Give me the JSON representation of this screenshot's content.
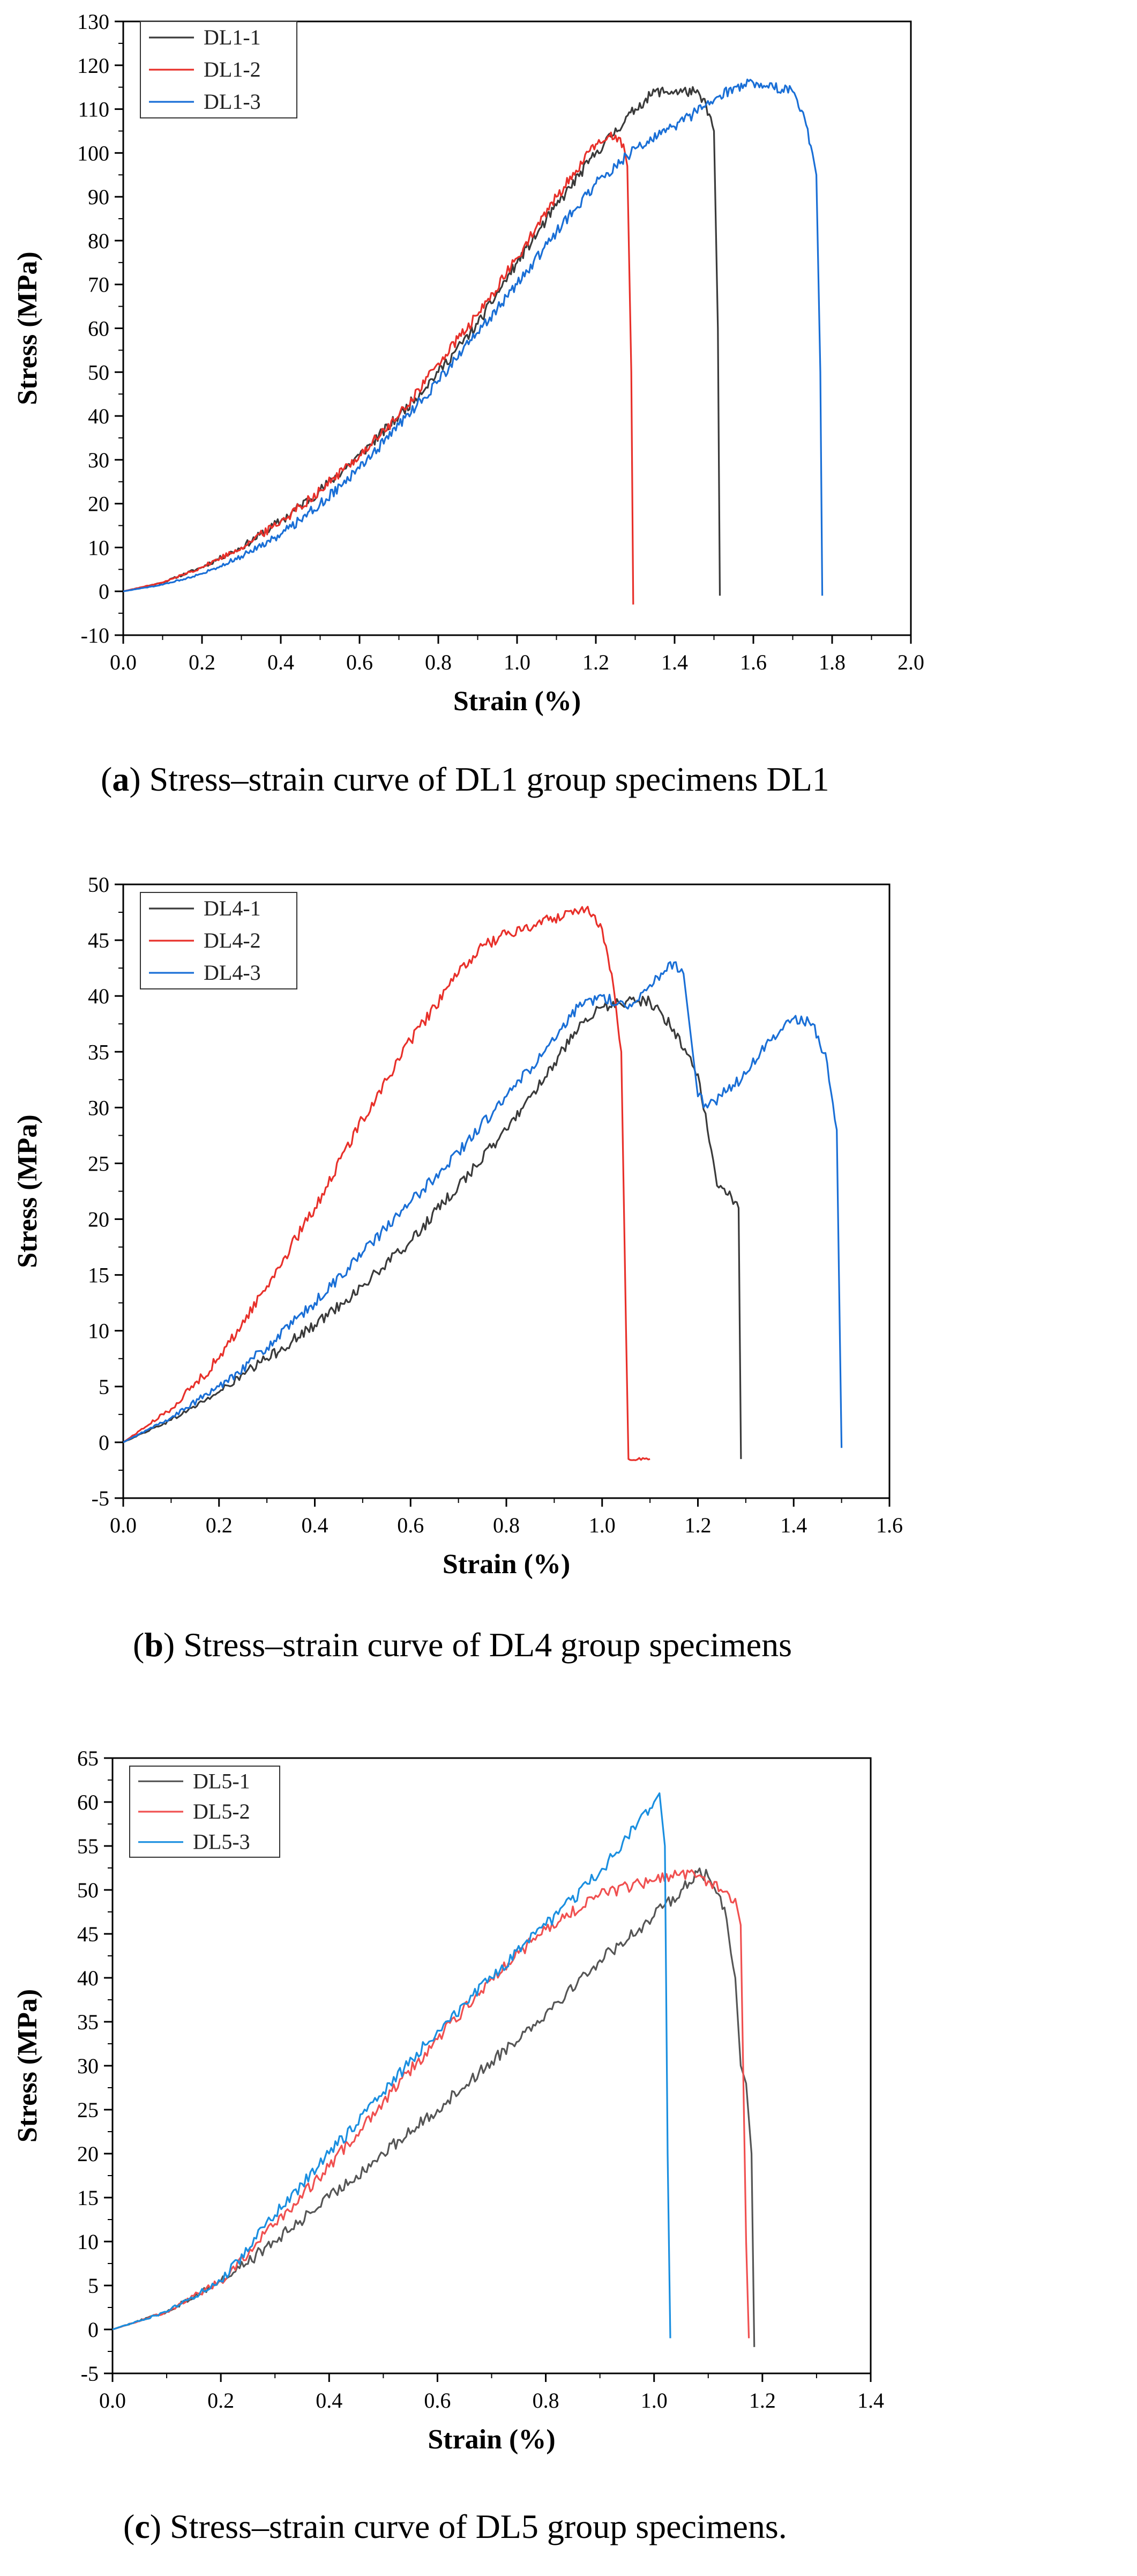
{
  "chart_data": [
    {
      "type": "line",
      "caption_letter": "a",
      "caption_text": " Stress–strain curve of DL1 group specimens DL1",
      "xlabel": "Strain (%)",
      "ylabel": "Stress (MPa)",
      "xlim": [
        0,
        2.0
      ],
      "ylim": [
        -10,
        130
      ],
      "xticks": [
        0,
        0.2,
        0.4,
        0.6,
        0.8,
        1.0,
        1.2,
        1.4,
        1.6,
        1.8,
        2.0
      ],
      "xtick_labels": [
        "0.0",
        "0.2",
        "0.4",
        "0.6",
        "0.8",
        "1.0",
        "1.2",
        "1.4",
        "1.6",
        "1.8",
        "2.0"
      ],
      "yticks": [
        -10,
        0,
        10,
        20,
        30,
        40,
        50,
        60,
        70,
        80,
        90,
        100,
        110,
        120,
        130
      ],
      "ytick_labels": [
        "-10",
        "0",
        "10",
        "20",
        "30",
        "40",
        "50",
        "60",
        "70",
        "80",
        "90",
        "100",
        "110",
        "120",
        "130"
      ],
      "legend_position": "top-left",
      "noise": 1.2,
      "series": [
        {
          "name": "DL1-1",
          "color": "#3a3a3a",
          "points": [
            [
              0,
              0
            ],
            [
              0.1,
              2
            ],
            [
              0.2,
              5.5
            ],
            [
              0.3,
              10
            ],
            [
              0.4,
              16
            ],
            [
              0.5,
              23
            ],
            [
              0.6,
              31
            ],
            [
              0.7,
              40
            ],
            [
              0.8,
              50
            ],
            [
              0.9,
              61
            ],
            [
              1.0,
              75
            ],
            [
              1.1,
              88
            ],
            [
              1.2,
              100
            ],
            [
              1.3,
              110
            ],
            [
              1.35,
              114
            ],
            [
              1.4,
              114
            ],
            [
              1.45,
              114
            ],
            [
              1.48,
              111
            ],
            [
              1.5,
              105
            ],
            [
              1.51,
              60
            ],
            [
              1.515,
              -1
            ]
          ]
        },
        {
          "name": "DL1-2",
          "color": "#e8302a",
          "points": [
            [
              0,
              0
            ],
            [
              0.1,
              2
            ],
            [
              0.2,
              5.5
            ],
            [
              0.3,
              10
            ],
            [
              0.4,
              16
            ],
            [
              0.5,
              23
            ],
            [
              0.6,
              31
            ],
            [
              0.7,
              40
            ],
            [
              0.8,
              52
            ],
            [
              0.9,
              63
            ],
            [
              1.0,
              76
            ],
            [
              1.1,
              90
            ],
            [
              1.15,
              96
            ],
            [
              1.2,
              102
            ],
            [
              1.25,
              104
            ],
            [
              1.27,
              102
            ],
            [
              1.28,
              97
            ],
            [
              1.29,
              50
            ],
            [
              1.295,
              -3
            ]
          ]
        },
        {
          "name": "DL1-3",
          "color": "#1a6fd6",
          "points": [
            [
              0,
              0
            ],
            [
              0.1,
              1.5
            ],
            [
              0.2,
              4
            ],
            [
              0.3,
              8
            ],
            [
              0.4,
              13
            ],
            [
              0.5,
              20
            ],
            [
              0.6,
              28
            ],
            [
              0.7,
              38
            ],
            [
              0.8,
              48
            ],
            [
              0.9,
              59
            ],
            [
              1.0,
              70
            ],
            [
              1.1,
              82
            ],
            [
              1.2,
              93
            ],
            [
              1.3,
              101
            ],
            [
              1.4,
              106
            ],
            [
              1.5,
              112
            ],
            [
              1.55,
              115
            ],
            [
              1.6,
              116
            ],
            [
              1.65,
              115
            ],
            [
              1.7,
              114
            ],
            [
              1.73,
              108
            ],
            [
              1.75,
              100
            ],
            [
              1.76,
              95
            ],
            [
              1.77,
              50
            ],
            [
              1.775,
              -1
            ]
          ]
        }
      ]
    },
    {
      "type": "line",
      "caption_letter": "b",
      "caption_text": " Stress–strain curve of DL4 group specimens",
      "xlabel": "Strain (%)",
      "ylabel": "Stress (MPa)",
      "xlim": [
        0,
        1.6
      ],
      "ylim": [
        -5,
        50
      ],
      "xticks": [
        0,
        0.2,
        0.4,
        0.6,
        0.8,
        1.0,
        1.2,
        1.4,
        1.6
      ],
      "xtick_labels": [
        "0.0",
        "0.2",
        "0.4",
        "0.6",
        "0.8",
        "1.0",
        "1.2",
        "1.4",
        "1.6"
      ],
      "yticks": [
        -5,
        0,
        5,
        10,
        15,
        20,
        25,
        30,
        35,
        40,
        45,
        50
      ],
      "ytick_labels": [
        "-5",
        "0",
        "5",
        "10",
        "15",
        "20",
        "25",
        "30",
        "35",
        "40",
        "45",
        "50"
      ],
      "legend_position": "top-left",
      "noise": 0.5,
      "series": [
        {
          "name": "DL4-1",
          "color": "#3a3a3a",
          "points": [
            [
              0,
              0
            ],
            [
              0.1,
              2
            ],
            [
              0.2,
              4.5
            ],
            [
              0.3,
              7.5
            ],
            [
              0.4,
              10.5
            ],
            [
              0.5,
              14
            ],
            [
              0.6,
              18
            ],
            [
              0.7,
              23
            ],
            [
              0.8,
              28
            ],
            [
              0.9,
              34
            ],
            [
              0.95,
              37
            ],
            [
              1.0,
              39
            ],
            [
              1.05,
              39.5
            ],
            [
              1.1,
              39.5
            ],
            [
              1.15,
              37
            ],
            [
              1.2,
              33
            ],
            [
              1.22,
              28
            ],
            [
              1.24,
              23
            ],
            [
              1.27,
              22
            ],
            [
              1.285,
              21
            ],
            [
              1.29,
              -1.5
            ]
          ]
        },
        {
          "name": "DL4-2",
          "color": "#e8302a",
          "points": [
            [
              0,
              0
            ],
            [
              0.1,
              3
            ],
            [
              0.2,
              7.5
            ],
            [
              0.3,
              14
            ],
            [
              0.4,
              21
            ],
            [
              0.5,
              29
            ],
            [
              0.6,
              36
            ],
            [
              0.7,
              42
            ],
            [
              0.75,
              44.5
            ],
            [
              0.8,
              45.5
            ],
            [
              0.9,
              47
            ],
            [
              0.97,
              48
            ],
            [
              1.0,
              46
            ],
            [
              1.02,
              42
            ],
            [
              1.04,
              35
            ],
            [
              1.05,
              10
            ],
            [
              1.055,
              -1.5
            ],
            [
              1.1,
              -1.5
            ]
          ]
        },
        {
          "name": "DL4-3",
          "color": "#1a6fd6",
          "points": [
            [
              0,
              0
            ],
            [
              0.1,
              2.2
            ],
            [
              0.2,
              5
            ],
            [
              0.3,
              8.5
            ],
            [
              0.4,
              12.5
            ],
            [
              0.5,
              17
            ],
            [
              0.6,
              21.5
            ],
            [
              0.7,
              26
            ],
            [
              0.8,
              31
            ],
            [
              0.9,
              36
            ],
            [
              0.95,
              39
            ],
            [
              1.0,
              40
            ],
            [
              1.05,
              39
            ],
            [
              1.1,
              41
            ],
            [
              1.15,
              43
            ],
            [
              1.17,
              42
            ],
            [
              1.2,
              31
            ],
            [
              1.22,
              30
            ],
            [
              1.3,
              33
            ],
            [
              1.35,
              36
            ],
            [
              1.4,
              38
            ],
            [
              1.44,
              37.5
            ],
            [
              1.47,
              34
            ],
            [
              1.49,
              28
            ],
            [
              1.5,
              -0.5
            ]
          ]
        }
      ]
    },
    {
      "type": "line",
      "caption_letter": "c",
      "caption_text": " Stress–strain curve of DL5 group specimens.",
      "xlabel": "Strain (%)",
      "ylabel": "Stress (MPa)",
      "xlim": [
        0,
        1.4
      ],
      "ylim": [
        -5,
        65
      ],
      "xticks": [
        0,
        0.2,
        0.4,
        0.6,
        0.8,
        1.0,
        1.2,
        1.4
      ],
      "xtick_labels": [
        "0.0",
        "0.2",
        "0.4",
        "0.6",
        "0.8",
        "1.0",
        "1.2",
        "1.4"
      ],
      "yticks": [
        -5,
        0,
        5,
        10,
        15,
        20,
        25,
        30,
        35,
        40,
        45,
        50,
        55,
        60,
        65
      ],
      "ytick_labels": [
        "-5",
        "0",
        "5",
        "10",
        "15",
        "20",
        "25",
        "30",
        "35",
        "40",
        "45",
        "50",
        "55",
        "60",
        "65"
      ],
      "legend_position": "top-left",
      "noise": 0.7,
      "series": [
        {
          "name": "DL5-1",
          "color": "#555555",
          "points": [
            [
              0,
              0
            ],
            [
              0.1,
              2
            ],
            [
              0.2,
              5.5
            ],
            [
              0.3,
              10
            ],
            [
              0.4,
              15
            ],
            [
              0.5,
              20
            ],
            [
              0.6,
              25
            ],
            [
              0.7,
              30.5
            ],
            [
              0.8,
              36
            ],
            [
              0.9,
              42
            ],
            [
              1.0,
              47
            ],
            [
              1.05,
              50
            ],
            [
              1.08,
              52
            ],
            [
              1.1,
              51.5
            ],
            [
              1.13,
              48
            ],
            [
              1.15,
              40
            ],
            [
              1.16,
              30
            ],
            [
              1.17,
              28
            ],
            [
              1.18,
              20
            ],
            [
              1.185,
              -2
            ]
          ]
        },
        {
          "name": "DL5-2",
          "color": "#f05050",
          "points": [
            [
              0,
              0
            ],
            [
              0.1,
              2
            ],
            [
              0.2,
              5.5
            ],
            [
              0.3,
              12
            ],
            [
              0.4,
              18.5
            ],
            [
              0.5,
              26
            ],
            [
              0.6,
              33
            ],
            [
              0.7,
              40
            ],
            [
              0.8,
              45.5
            ],
            [
              0.9,
              49.5
            ],
            [
              1.0,
              51
            ],
            [
              1.05,
              52
            ],
            [
              1.1,
              51
            ],
            [
              1.15,
              49
            ],
            [
              1.16,
              46
            ],
            [
              1.17,
              10
            ],
            [
              1.175,
              -1
            ]
          ]
        },
        {
          "name": "DL5-3",
          "color": "#1a8fe0",
          "points": [
            [
              0,
              0
            ],
            [
              0.1,
              2
            ],
            [
              0.2,
              5.5
            ],
            [
              0.3,
              13
            ],
            [
              0.4,
              20
            ],
            [
              0.5,
              27
            ],
            [
              0.6,
              34
            ],
            [
              0.7,
              40
            ],
            [
              0.8,
              46
            ],
            [
              0.9,
              52
            ],
            [
              0.95,
              56
            ],
            [
              1.0,
              60
            ],
            [
              1.01,
              61
            ],
            [
              1.02,
              55
            ],
            [
              1.025,
              20
            ],
            [
              1.03,
              -1
            ]
          ]
        }
      ]
    }
  ]
}
